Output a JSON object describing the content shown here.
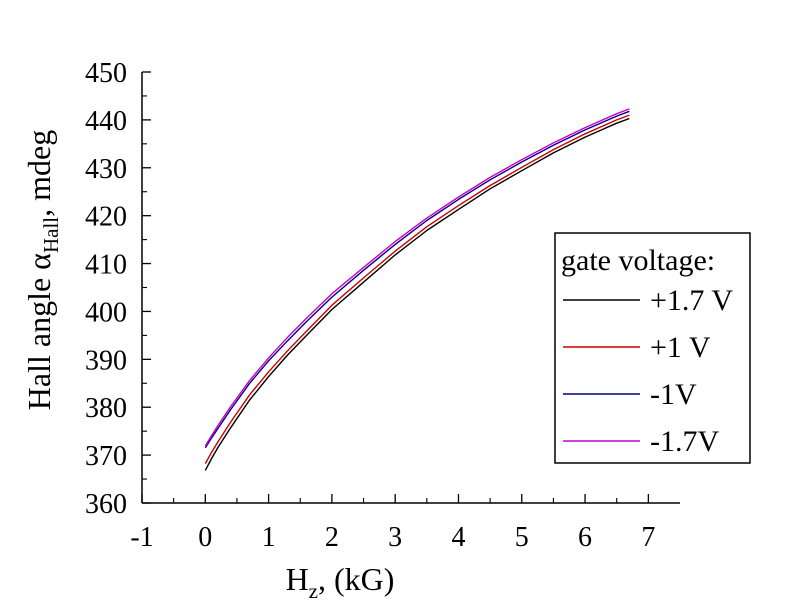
{
  "chart_data": {
    "type": "line",
    "xlabel": {
      "main": "H",
      "sub": "z",
      "rest": ", (kG)"
    },
    "ylabel": {
      "main": "Hall angle α",
      "sub": "Hall",
      "rest": ", mdeg"
    },
    "xlim": [
      -1,
      7.5
    ],
    "ylim": [
      360,
      450
    ],
    "xticks": [
      -1,
      0,
      1,
      2,
      3,
      4,
      5,
      6,
      7
    ],
    "yticks": [
      360,
      370,
      380,
      390,
      400,
      410,
      420,
      430,
      440,
      450
    ],
    "x": [
      0.0,
      0.1,
      0.2,
      0.4,
      0.7,
      1.0,
      1.3,
      1.6,
      2.0,
      2.5,
      3.0,
      3.5,
      4.0,
      4.5,
      5.0,
      5.5,
      6.0,
      6.5,
      6.7
    ],
    "legend": {
      "title": "gate voltage:",
      "position": "right"
    },
    "series": [
      {
        "name": "+1.7 V",
        "color": "#000000",
        "values": [
          366.8,
          369.3,
          371.6,
          375.7,
          381.5,
          386.4,
          390.9,
          395.0,
          400.4,
          406.1,
          411.8,
          416.9,
          421.3,
          425.6,
          429.4,
          433.1,
          436.4,
          439.3,
          440.3
        ]
      },
      {
        "name": "+1 V",
        "color": "#cc0000",
        "values": [
          368.2,
          370.6,
          372.8,
          376.9,
          382.6,
          387.4,
          391.8,
          395.9,
          401.3,
          407.0,
          412.6,
          417.7,
          422.1,
          426.3,
          430.1,
          433.8,
          437.1,
          440.0,
          441.0
        ]
      },
      {
        "name": "-1V",
        "color": "#00008b",
        "values": [
          371.5,
          373.6,
          375.6,
          379.5,
          385.0,
          389.7,
          393.9,
          397.9,
          403.0,
          408.6,
          414.0,
          419.0,
          423.4,
          427.5,
          431.2,
          434.7,
          437.9,
          440.8,
          441.8
        ]
      },
      {
        "name": "-1.7V",
        "color": "#cc00cc",
        "values": [
          371.9,
          374.1,
          376.2,
          380.1,
          385.6,
          390.3,
          394.6,
          398.6,
          403.7,
          409.2,
          414.6,
          419.5,
          423.9,
          428.0,
          431.7,
          435.2,
          438.4,
          441.3,
          442.3
        ]
      }
    ]
  }
}
